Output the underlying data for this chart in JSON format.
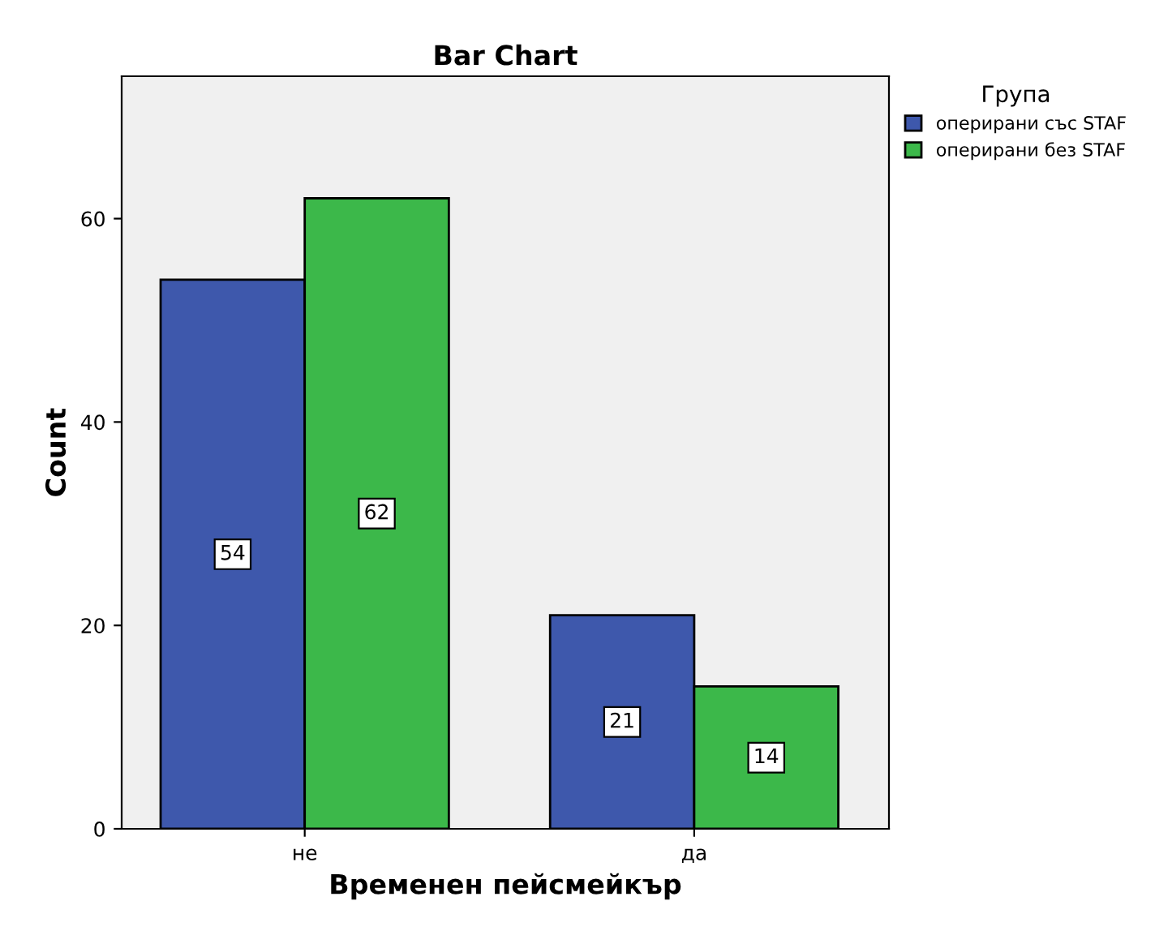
{
  "chart_data": {
    "type": "bar",
    "title": "Bar Chart",
    "xlabel": "Временен пейсмейкър",
    "ylabel": "Count",
    "legend_title": "Група",
    "categories": [
      "не",
      "да"
    ],
    "series": [
      {
        "name": "оперирани със STAF",
        "color": "#3e58ac",
        "values": [
          54,
          21
        ]
      },
      {
        "name": "оперирани без STAF",
        "color": "#3cb84a",
        "values": [
          62,
          14
        ]
      }
    ],
    "ylim": [
      0,
      74
    ],
    "yticks": [
      0,
      20,
      40,
      60
    ],
    "grid": false,
    "legend": "top right",
    "data_labels": true
  }
}
